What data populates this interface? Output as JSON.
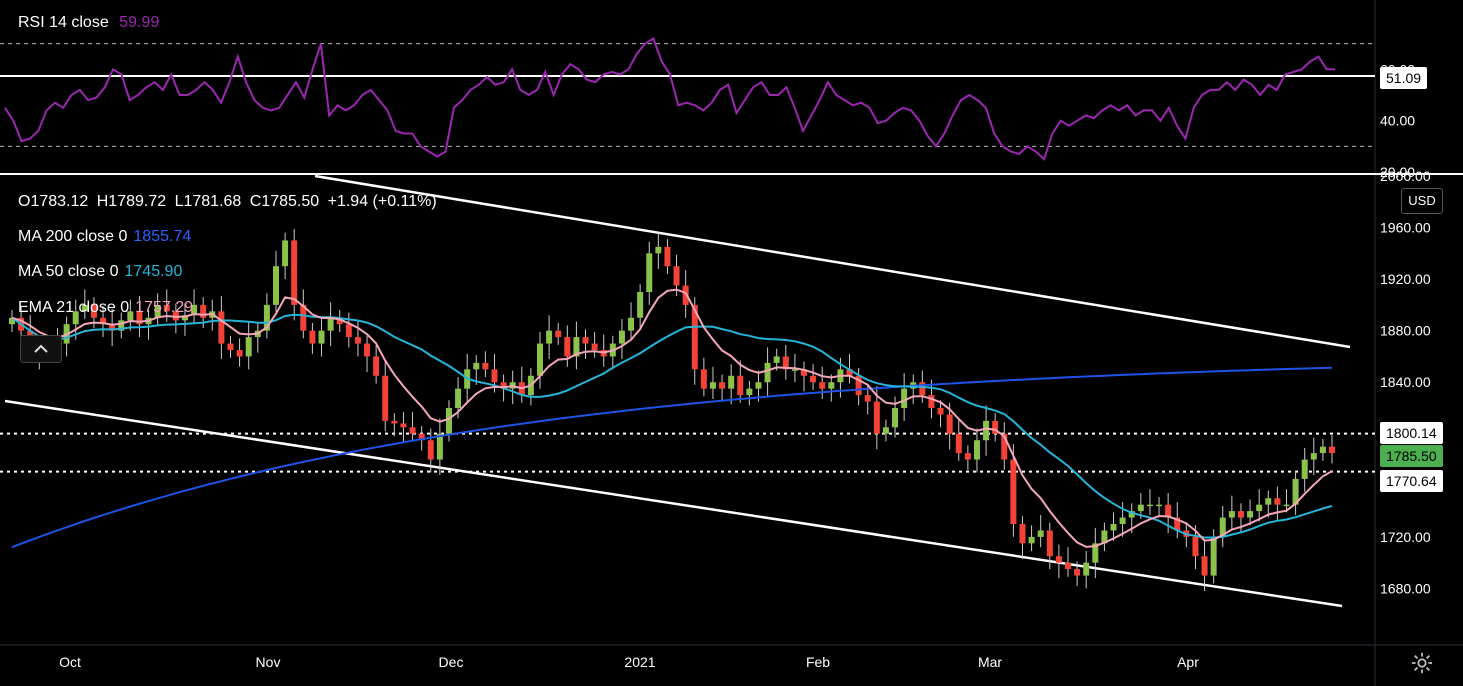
{
  "rsi": {
    "label": "RSI 14 close",
    "value": "59.99",
    "value_color": "#9c27b0",
    "yticks": [
      "60.00",
      "40.00",
      "20.00"
    ],
    "level_tag": "51.09",
    "ylim": [
      20,
      80
    ],
    "series": [
      45,
      40,
      32,
      33,
      36,
      44,
      47,
      45,
      50,
      52,
      48,
      49,
      53,
      60,
      58,
      48,
      50,
      53,
      55,
      52,
      58,
      50,
      50,
      52,
      55,
      52,
      47,
      55,
      65,
      55,
      48,
      45,
      44,
      45,
      50,
      55,
      49,
      60,
      70,
      42,
      46,
      44,
      46,
      50,
      52,
      48,
      44,
      36,
      35,
      35,
      30,
      28,
      26,
      28,
      45,
      48,
      52,
      54,
      57,
      54,
      55,
      60,
      52,
      50,
      52,
      59,
      50,
      58,
      62,
      60,
      56,
      55,
      58,
      59,
      58,
      60,
      66,
      70,
      72,
      63,
      58,
      46,
      47,
      46,
      44,
      47,
      52,
      54,
      43,
      48,
      53,
      55,
      50,
      50,
      53,
      45,
      36,
      42,
      48,
      55,
      50,
      48,
      46,
      47,
      45,
      39,
      40,
      43,
      45,
      44,
      40,
      34,
      30,
      35,
      42,
      48,
      50,
      48,
      45,
      35,
      30,
      28,
      27,
      30,
      28,
      25,
      35,
      40,
      38,
      40,
      42,
      41,
      44,
      46,
      44,
      46,
      42,
      44,
      44,
      40,
      45,
      38,
      33,
      45,
      50,
      52,
      52,
      55,
      52,
      56,
      54,
      50,
      54,
      52,
      58,
      59,
      60,
      63,
      65,
      60,
      60
    ]
  },
  "ohlc_legend": {
    "o": "O1783.12",
    "h": "H1789.72",
    "l": "L1781.68",
    "c": "C1785.50",
    "chg": "+1.94 (+0.11%)"
  },
  "indicators": [
    {
      "label": "MA 200 close 0",
      "value": "1855.74",
      "color": "#2962ff"
    },
    {
      "label": "MA 50 close 0",
      "value": "1745.90",
      "color": "#00bcd4"
    },
    {
      "label": "EMA 21 close 0",
      "value": "1757.29",
      "color": "#f8bbd0"
    }
  ],
  "price_axis": {
    "currency": "USD",
    "ticks": [
      "2000.00",
      "1960.00",
      "1920.00",
      "1880.00",
      "1840.00",
      "1800.00",
      "1760.00",
      "1720.00",
      "1680.00"
    ],
    "tags": [
      {
        "value": "1800.14",
        "bg": "#ffffff",
        "fg": "#000000"
      },
      {
        "value": "1785.50",
        "bg": "#4caf50",
        "fg": "#000000"
      },
      {
        "value": "1770.64",
        "bg": "#ffffff",
        "fg": "#000000"
      }
    ]
  },
  "time_axis": [
    "Oct",
    "Nov",
    "Dec",
    "2021",
    "Feb",
    "Mar",
    "Apr"
  ],
  "colors": {
    "up": "#8bc34a",
    "down": "#f44336",
    "ma200": "#1e53e5",
    "ma50": "#26b5d8",
    "ema21": "#f4a7b9",
    "rsi": "#9c27b0"
  },
  "chart_data": {
    "type": "candlestick",
    "symbol_currency": "USD",
    "ylim": [
      1640,
      2000
    ],
    "trendlines": [
      {
        "from": [
          "Nov 1",
          1998
        ],
        "to": [
          "Apr 25",
          1870
        ]
      },
      {
        "from": [
          "Sep 20",
          1828
        ],
        "to": [
          "Apr 25",
          1666
        ]
      }
    ],
    "horizontal_levels": [
      1800.14,
      1770.64
    ],
    "closes": [
      1890,
      1880,
      1870,
      1862,
      1865,
      1870,
      1885,
      1895,
      1900,
      1890,
      1885,
      1880,
      1888,
      1895,
      1885,
      1890,
      1900,
      1895,
      1888,
      1892,
      1900,
      1890,
      1895,
      1870,
      1865,
      1860,
      1875,
      1880,
      1900,
      1930,
      1950,
      1900,
      1880,
      1870,
      1880,
      1890,
      1885,
      1875,
      1870,
      1860,
      1845,
      1810,
      1808,
      1805,
      1800,
      1795,
      1780,
      1800,
      1820,
      1835,
      1850,
      1855,
      1850,
      1840,
      1835,
      1840,
      1830,
      1845,
      1870,
      1880,
      1875,
      1860,
      1875,
      1870,
      1865,
      1860,
      1870,
      1880,
      1890,
      1910,
      1940,
      1945,
      1930,
      1915,
      1900,
      1850,
      1835,
      1840,
      1835,
      1845,
      1830,
      1835,
      1840,
      1855,
      1860,
      1850,
      1850,
      1845,
      1840,
      1835,
      1840,
      1850,
      1845,
      1830,
      1825,
      1800,
      1805,
      1820,
      1835,
      1840,
      1830,
      1820,
      1815,
      1800,
      1785,
      1780,
      1795,
      1810,
      1800,
      1780,
      1730,
      1715,
      1720,
      1725,
      1705,
      1700,
      1695,
      1690,
      1700,
      1715,
      1725,
      1730,
      1735,
      1740,
      1745,
      1745,
      1745,
      1735,
      1725,
      1720,
      1705,
      1690,
      1720,
      1735,
      1740,
      1735,
      1740,
      1745,
      1750,
      1745,
      1745,
      1765,
      1780,
      1785,
      1790,
      1785
    ]
  }
}
